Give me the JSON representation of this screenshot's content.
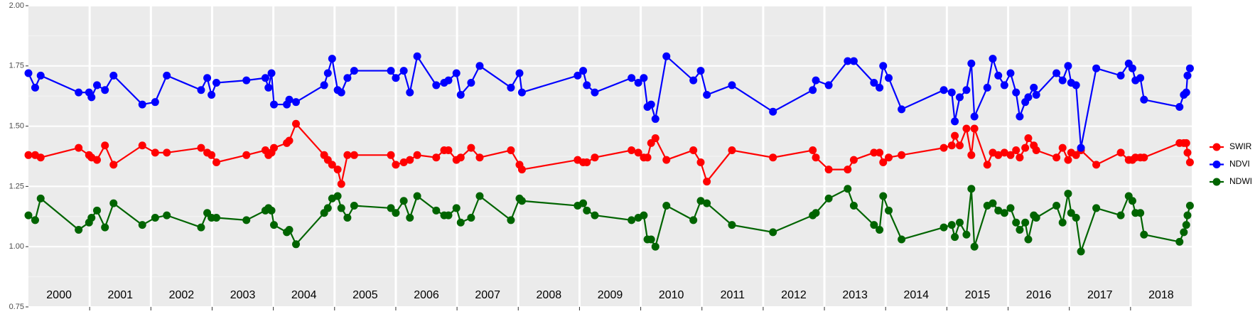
{
  "chart_data": {
    "type": "line",
    "x": [
      2000.0,
      2000.11,
      2000.2,
      2000.82,
      2000.99,
      2001.03,
      2001.12,
      2001.25,
      2001.39,
      2001.86,
      2002.07,
      2002.26,
      2002.82,
      2002.92,
      2002.99,
      2003.07,
      2003.56,
      2003.87,
      2003.92,
      2003.97,
      2004.01,
      2004.22,
      2004.26,
      2004.37,
      2004.83,
      2004.89,
      2004.96,
      2005.05,
      2005.11,
      2005.21,
      2005.32,
      2005.92,
      2006.0,
      2006.13,
      2006.23,
      2006.35,
      2006.66,
      2006.79,
      2006.86,
      2006.99,
      2007.06,
      2007.23,
      2007.37,
      2007.88,
      2008.02,
      2008.06,
      2008.97,
      2009.06,
      2009.12,
      2009.25,
      2009.85,
      2009.96,
      2010.05,
      2010.11,
      2010.17,
      2010.24,
      2010.42,
      2010.86,
      2010.98,
      2011.08,
      2011.49,
      2012.16,
      2012.81,
      2012.86,
      2013.07,
      2013.38,
      2013.48,
      2013.81,
      2013.9,
      2013.96,
      2014.05,
      2014.26,
      2014.95,
      2015.08,
      2015.13,
      2015.21,
      2015.32,
      2015.4,
      2015.45,
      2015.66,
      2015.75,
      2015.84,
      2015.94,
      2016.04,
      2016.13,
      2016.19,
      2016.28,
      2016.33,
      2016.42,
      2016.46,
      2016.79,
      2016.89,
      2016.98,
      2017.03,
      2017.11,
      2017.19,
      2017.44,
      2017.84,
      2017.97,
      2018.03,
      2018.08,
      2018.16,
      2018.22,
      2018.8,
      2018.87,
      2018.91,
      2018.93,
      2018.97
    ],
    "series": [
      {
        "name": "SWIR",
        "color": "#ff0000",
        "values": [
          1.38,
          1.38,
          1.37,
          1.41,
          1.38,
          1.37,
          1.36,
          1.42,
          1.34,
          1.42,
          1.39,
          1.39,
          1.41,
          1.39,
          1.38,
          1.35,
          1.38,
          1.4,
          1.38,
          1.39,
          1.41,
          1.43,
          1.44,
          1.51,
          1.38,
          1.36,
          1.34,
          1.32,
          1.26,
          1.38,
          1.38,
          1.38,
          1.34,
          1.35,
          1.36,
          1.38,
          1.37,
          1.4,
          1.4,
          1.36,
          1.37,
          1.41,
          1.37,
          1.4,
          1.34,
          1.32,
          1.36,
          1.35,
          1.35,
          1.37,
          1.4,
          1.39,
          1.37,
          1.37,
          1.43,
          1.45,
          1.36,
          1.4,
          1.35,
          1.27,
          1.4,
          1.37,
          1.4,
          1.37,
          1.32,
          1.32,
          1.36,
          1.39,
          1.39,
          1.35,
          1.37,
          1.38,
          1.41,
          1.42,
          1.46,
          1.42,
          1.49,
          1.38,
          1.49,
          1.34,
          1.39,
          1.38,
          1.39,
          1.38,
          1.4,
          1.37,
          1.41,
          1.45,
          1.42,
          1.4,
          1.37,
          1.41,
          1.36,
          1.39,
          1.38,
          1.4,
          1.34,
          1.39,
          1.36,
          1.36,
          1.37,
          1.37,
          1.37,
          1.43,
          1.43,
          1.43,
          1.39,
          1.35
        ]
      },
      {
        "name": "NDVI",
        "color": "#0000ff",
        "values": [
          1.72,
          1.66,
          1.71,
          1.64,
          1.64,
          1.62,
          1.67,
          1.65,
          1.71,
          1.59,
          1.6,
          1.71,
          1.65,
          1.7,
          1.63,
          1.68,
          1.69,
          1.7,
          1.66,
          1.72,
          1.59,
          1.59,
          1.61,
          1.6,
          1.67,
          1.72,
          1.78,
          1.65,
          1.64,
          1.7,
          1.73,
          1.73,
          1.7,
          1.73,
          1.64,
          1.79,
          1.67,
          1.68,
          1.69,
          1.72,
          1.63,
          1.68,
          1.75,
          1.66,
          1.72,
          1.64,
          1.71,
          1.73,
          1.67,
          1.64,
          1.7,
          1.68,
          1.7,
          1.58,
          1.59,
          1.53,
          1.79,
          1.69,
          1.73,
          1.63,
          1.67,
          1.56,
          1.65,
          1.69,
          1.67,
          1.77,
          1.77,
          1.68,
          1.66,
          1.75,
          1.7,
          1.57,
          1.65,
          1.64,
          1.52,
          1.62,
          1.65,
          1.76,
          1.54,
          1.66,
          1.78,
          1.71,
          1.67,
          1.72,
          1.64,
          1.54,
          1.6,
          1.62,
          1.66,
          1.63,
          1.72,
          1.69,
          1.75,
          1.68,
          1.67,
          1.41,
          1.74,
          1.71,
          1.76,
          1.74,
          1.69,
          1.7,
          1.61,
          1.58,
          1.63,
          1.64,
          1.71,
          1.74
        ]
      },
      {
        "name": "NDWI",
        "color": "#006400",
        "values": [
          1.13,
          1.11,
          1.2,
          1.07,
          1.1,
          1.12,
          1.15,
          1.08,
          1.18,
          1.09,
          1.12,
          1.13,
          1.08,
          1.14,
          1.12,
          1.12,
          1.11,
          1.15,
          1.16,
          1.15,
          1.09,
          1.06,
          1.07,
          1.01,
          1.14,
          1.16,
          1.2,
          1.21,
          1.16,
          1.12,
          1.17,
          1.16,
          1.14,
          1.19,
          1.12,
          1.21,
          1.15,
          1.13,
          1.13,
          1.16,
          1.1,
          1.12,
          1.21,
          1.11,
          1.2,
          1.19,
          1.17,
          1.18,
          1.15,
          1.13,
          1.11,
          1.12,
          1.13,
          1.03,
          1.03,
          1.0,
          1.17,
          1.11,
          1.19,
          1.18,
          1.09,
          1.06,
          1.13,
          1.14,
          1.2,
          1.24,
          1.17,
          1.09,
          1.07,
          1.21,
          1.15,
          1.03,
          1.08,
          1.09,
          1.04,
          1.1,
          1.05,
          1.24,
          1.0,
          1.17,
          1.18,
          1.15,
          1.14,
          1.16,
          1.1,
          1.07,
          1.1,
          1.03,
          1.13,
          1.12,
          1.17,
          1.1,
          1.22,
          1.14,
          1.12,
          0.98,
          1.16,
          1.13,
          1.21,
          1.19,
          1.14,
          1.14,
          1.05,
          1.02,
          1.06,
          1.09,
          1.13,
          1.17
        ]
      }
    ],
    "xlim": [
      2000,
      2019
    ],
    "xticks": [
      2001,
      2002,
      2003,
      2004,
      2005,
      2006,
      2007,
      2008,
      2009,
      2010,
      2011,
      2012,
      2013,
      2014,
      2015,
      2016,
      2017,
      2018
    ],
    "year_labels": [
      {
        "value": 2000.5,
        "label": "2000"
      },
      {
        "value": 2001.5,
        "label": "2001"
      },
      {
        "value": 2002.5,
        "label": "2002"
      },
      {
        "value": 2003.5,
        "label": "2003"
      },
      {
        "value": 2004.5,
        "label": "2004"
      },
      {
        "value": 2005.5,
        "label": "2005"
      },
      {
        "value": 2006.5,
        "label": "2006"
      },
      {
        "value": 2007.5,
        "label": "2007"
      },
      {
        "value": 2008.5,
        "label": "2008"
      },
      {
        "value": 2009.5,
        "label": "2009"
      },
      {
        "value": 2010.5,
        "label": "2010"
      },
      {
        "value": 2011.5,
        "label": "2011"
      },
      {
        "value": 2012.5,
        "label": "2012"
      },
      {
        "value": 2013.5,
        "label": "2013"
      },
      {
        "value": 2014.5,
        "label": "2014"
      },
      {
        "value": 2015.5,
        "label": "2015"
      },
      {
        "value": 2016.5,
        "label": "2016"
      },
      {
        "value": 2017.5,
        "label": "2017"
      },
      {
        "value": 2018.5,
        "label": "2018"
      }
    ],
    "ylim": [
      0.75,
      2.0
    ],
    "yticks": [
      0.75,
      {
        "value": 1.0,
        "label": "1.00"
      },
      1.25,
      {
        "value": 1.5,
        "label": "1.50"
      },
      1.75,
      {
        "value": 2.0,
        "label": "2.00"
      }
    ],
    "y_minor_grid": [
      0.875,
      1.125,
      1.375,
      1.625,
      1.875
    ],
    "grid": true,
    "legend": "right"
  }
}
